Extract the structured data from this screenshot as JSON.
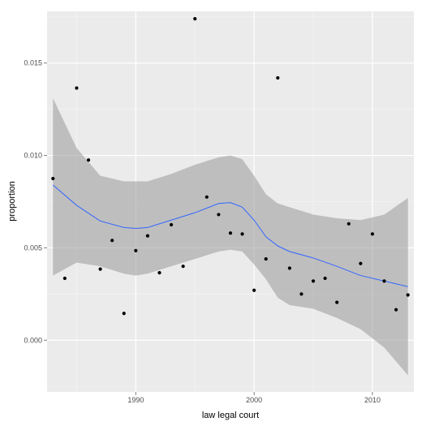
{
  "chart_data": {
    "type": "scatter",
    "xlabel": "law legal court",
    "ylabel": "proportion",
    "xlim": [
      1982.5,
      2013.5
    ],
    "ylim": [
      -0.0028,
      0.0178
    ],
    "x_ticks": [
      1990,
      2000,
      2010
    ],
    "x_tick_labels": [
      "1990",
      "2000",
      "2010"
    ],
    "y_ticks": [
      0.0,
      0.005,
      0.01,
      0.015
    ],
    "y_tick_labels": [
      "0.000",
      "0.005",
      "0.010",
      "0.015"
    ],
    "grid": true,
    "points": [
      {
        "x": 1983,
        "y": 0.00875
      },
      {
        "x": 1984,
        "y": 0.00335
      },
      {
        "x": 1985,
        "y": 0.01365
      },
      {
        "x": 1986,
        "y": 0.00975
      },
      {
        "x": 1987,
        "y": 0.00385
      },
      {
        "x": 1988,
        "y": 0.0054
      },
      {
        "x": 1989,
        "y": 0.00145
      },
      {
        "x": 1990,
        "y": 0.00485
      },
      {
        "x": 1991,
        "y": 0.00565
      },
      {
        "x": 1992,
        "y": 0.00365
      },
      {
        "x": 1993,
        "y": 0.00625
      },
      {
        "x": 1994,
        "y": 0.004
      },
      {
        "x": 1995,
        "y": 0.0174
      },
      {
        "x": 1996,
        "y": 0.00775
      },
      {
        "x": 1997,
        "y": 0.0068
      },
      {
        "x": 1998,
        "y": 0.0058
      },
      {
        "x": 1999,
        "y": 0.00575
      },
      {
        "x": 2000,
        "y": 0.0027
      },
      {
        "x": 2001,
        "y": 0.0044
      },
      {
        "x": 2002,
        "y": 0.0142
      },
      {
        "x": 2003,
        "y": 0.0039
      },
      {
        "x": 2004,
        "y": 0.0025
      },
      {
        "x": 2005,
        "y": 0.0032
      },
      {
        "x": 2006,
        "y": 0.00335
      },
      {
        "x": 2007,
        "y": 0.00205
      },
      {
        "x": 2008,
        "y": 0.0063
      },
      {
        "x": 2009,
        "y": 0.00415
      },
      {
        "x": 2010,
        "y": 0.00575
      },
      {
        "x": 2011,
        "y": 0.0032
      },
      {
        "x": 2012,
        "y": 0.00165
      },
      {
        "x": 2013,
        "y": 0.00245
      }
    ],
    "smooth": {
      "x": [
        1983,
        1985,
        1987,
        1989,
        1990,
        1991,
        1993,
        1995,
        1997,
        1998,
        1999,
        2000,
        2001,
        2002,
        2003,
        2005,
        2007,
        2009,
        2011,
        2013
      ],
      "y": [
        0.0084,
        0.0073,
        0.00645,
        0.0061,
        0.00605,
        0.0061,
        0.0065,
        0.0069,
        0.0074,
        0.00745,
        0.0072,
        0.0065,
        0.0056,
        0.0051,
        0.0048,
        0.00445,
        0.004,
        0.0035,
        0.0032,
        0.0029
      ],
      "ymin": [
        0.0035,
        0.0042,
        0.004,
        0.0036,
        0.0035,
        0.0036,
        0.004,
        0.0044,
        0.0048,
        0.0049,
        0.0048,
        0.0041,
        0.0033,
        0.0023,
        0.0019,
        0.0017,
        0.0012,
        0.0006,
        -0.0004,
        -0.0019
      ],
      "ymax": [
        0.0131,
        0.0104,
        0.0089,
        0.0086,
        0.0086,
        0.0086,
        0.009,
        0.0095,
        0.0099,
        0.01,
        0.0098,
        0.0089,
        0.0079,
        0.0074,
        0.0072,
        0.0068,
        0.0066,
        0.0065,
        0.0068,
        0.0077
      ],
      "line_color": "#3366ff",
      "band_color": "#999999"
    },
    "colors": {
      "panel_bg": "#ebebeb",
      "grid_major": "#ffffff",
      "point": "#000000"
    }
  }
}
